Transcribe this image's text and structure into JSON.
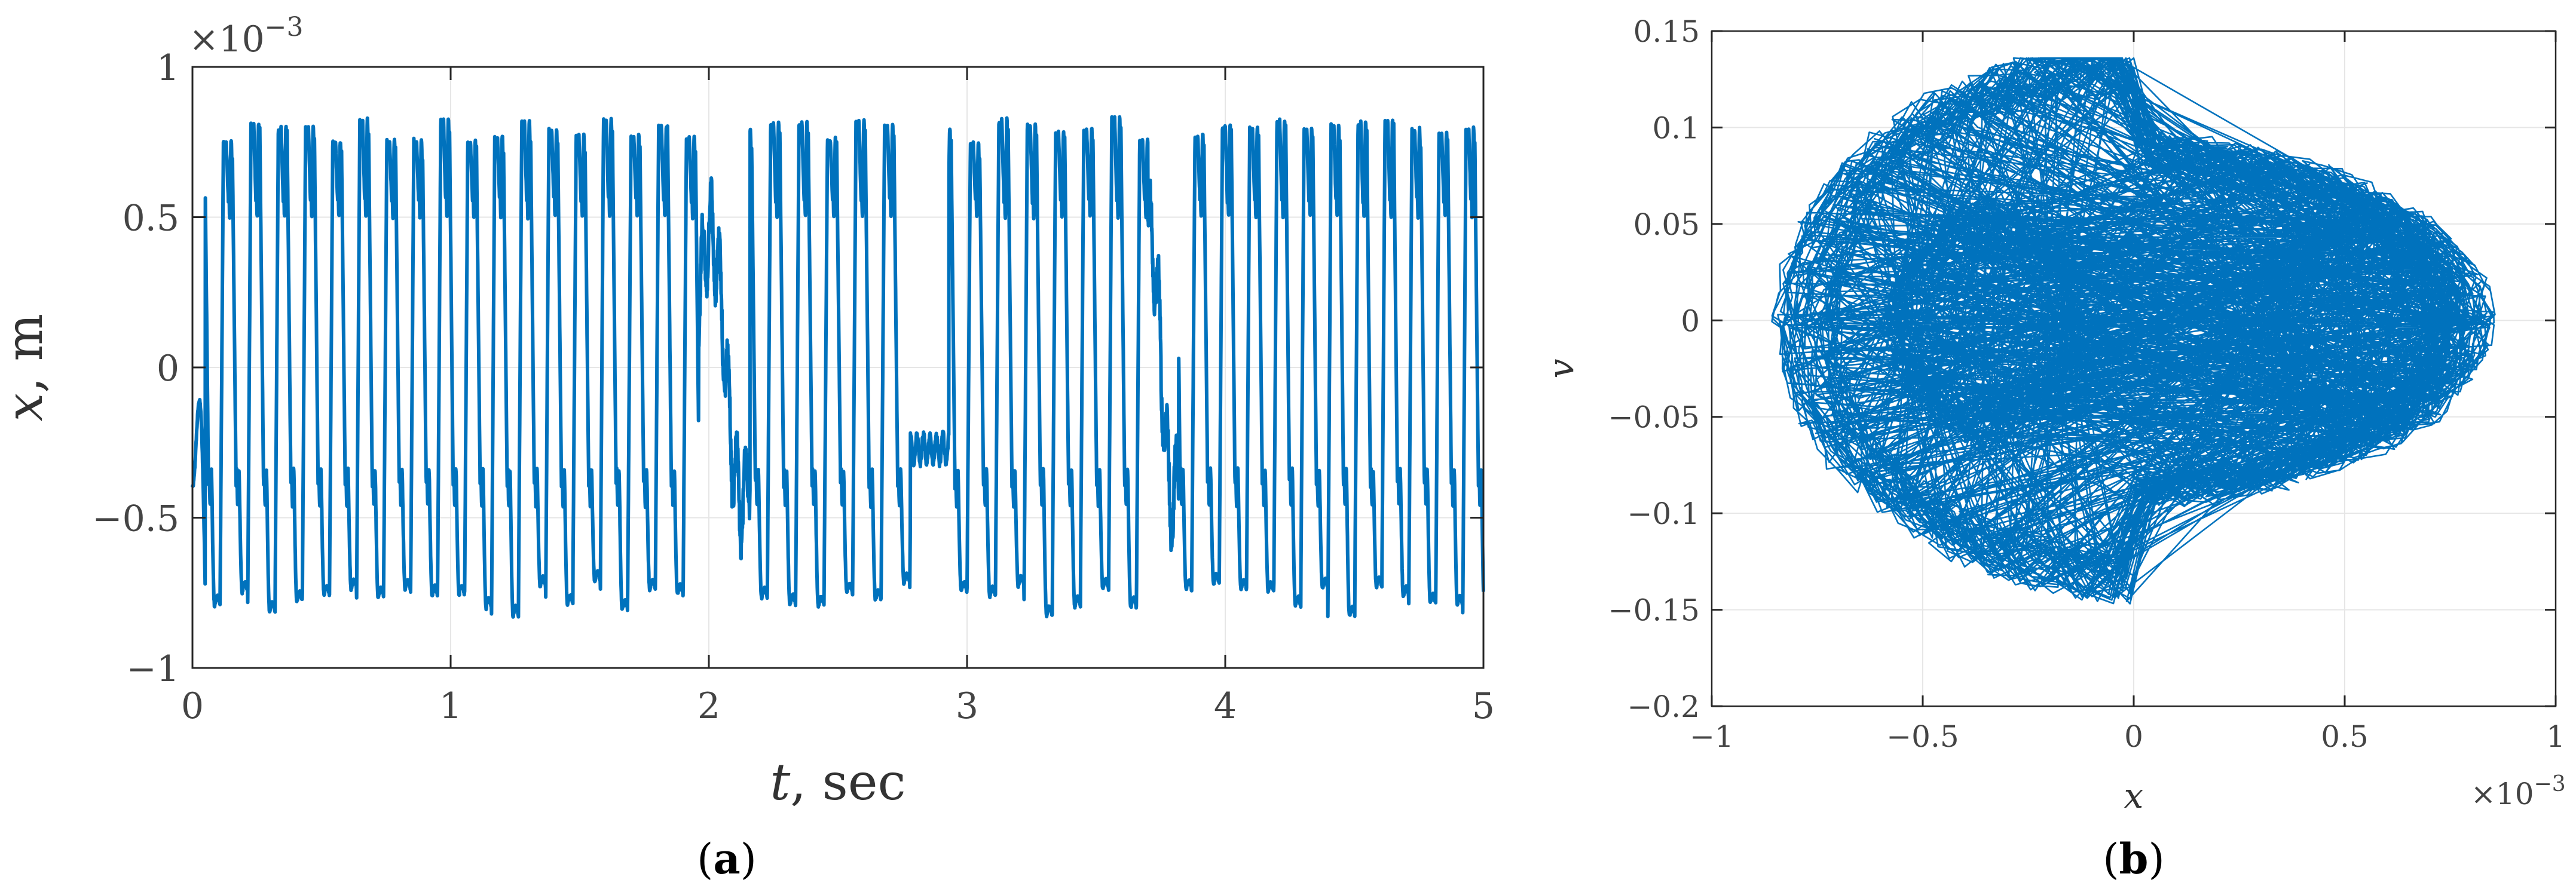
{
  "chart_data": [
    {
      "panel": "(a)",
      "panel_label": "a",
      "type": "line",
      "xlabel_var": "t",
      "xlabel_unit": ", sec",
      "ylabel_var": "x",
      "ylabel_unit": ", m",
      "y_exponent_prefix": "×10",
      "y_exponent": "−3",
      "xlim": [
        0,
        5
      ],
      "ylim": [
        -1,
        1
      ],
      "y_scale_factor": 0.001,
      "xticks": [
        0,
        1,
        2,
        3,
        4,
        5
      ],
      "xtick_labels": [
        "0",
        "1",
        "2",
        "3",
        "4",
        "5"
      ],
      "yticks": [
        -1,
        -0.5,
        0,
        0.5,
        1
      ],
      "ytick_labels": [
        "−1",
        "−0.5",
        "0",
        "0.5",
        "1"
      ],
      "grid": true,
      "color": "#0072BD",
      "approx_oscillation_frequency_hz": 9.3,
      "approx_peak_positive": 0.83,
      "approx_peak_negative": -0.83,
      "approx_shelf_level_positive": 0.55,
      "approx_shelf_level_negative": -0.4
    },
    {
      "panel": "(b)",
      "panel_label": "b",
      "type": "line",
      "xlabel_var": "x",
      "ylabel_var": "v",
      "x_exponent_prefix": "×10",
      "x_exponent": "−3",
      "xlim": [
        -1,
        1
      ],
      "ylim": [
        -0.2,
        0.15
      ],
      "x_scale_factor": 0.001,
      "xticks": [
        -1,
        -0.5,
        0,
        0.5,
        1
      ],
      "xtick_labels": [
        "−1",
        "−0.5",
        "0",
        "0.5",
        "1"
      ],
      "yticks": [
        -0.2,
        -0.15,
        -0.1,
        -0.05,
        0,
        0.05,
        0.1,
        0.15
      ],
      "ytick_labels": [
        "−0.2",
        "−0.15",
        "−0.1",
        "−0.05",
        "0",
        "0.05",
        "0.1",
        "0.15"
      ],
      "grid": true,
      "color": "#0072BD",
      "approx_x_range": [
        -0.85,
        0.85
      ],
      "approx_v_range": [
        -0.165,
        0.135
      ]
    }
  ]
}
